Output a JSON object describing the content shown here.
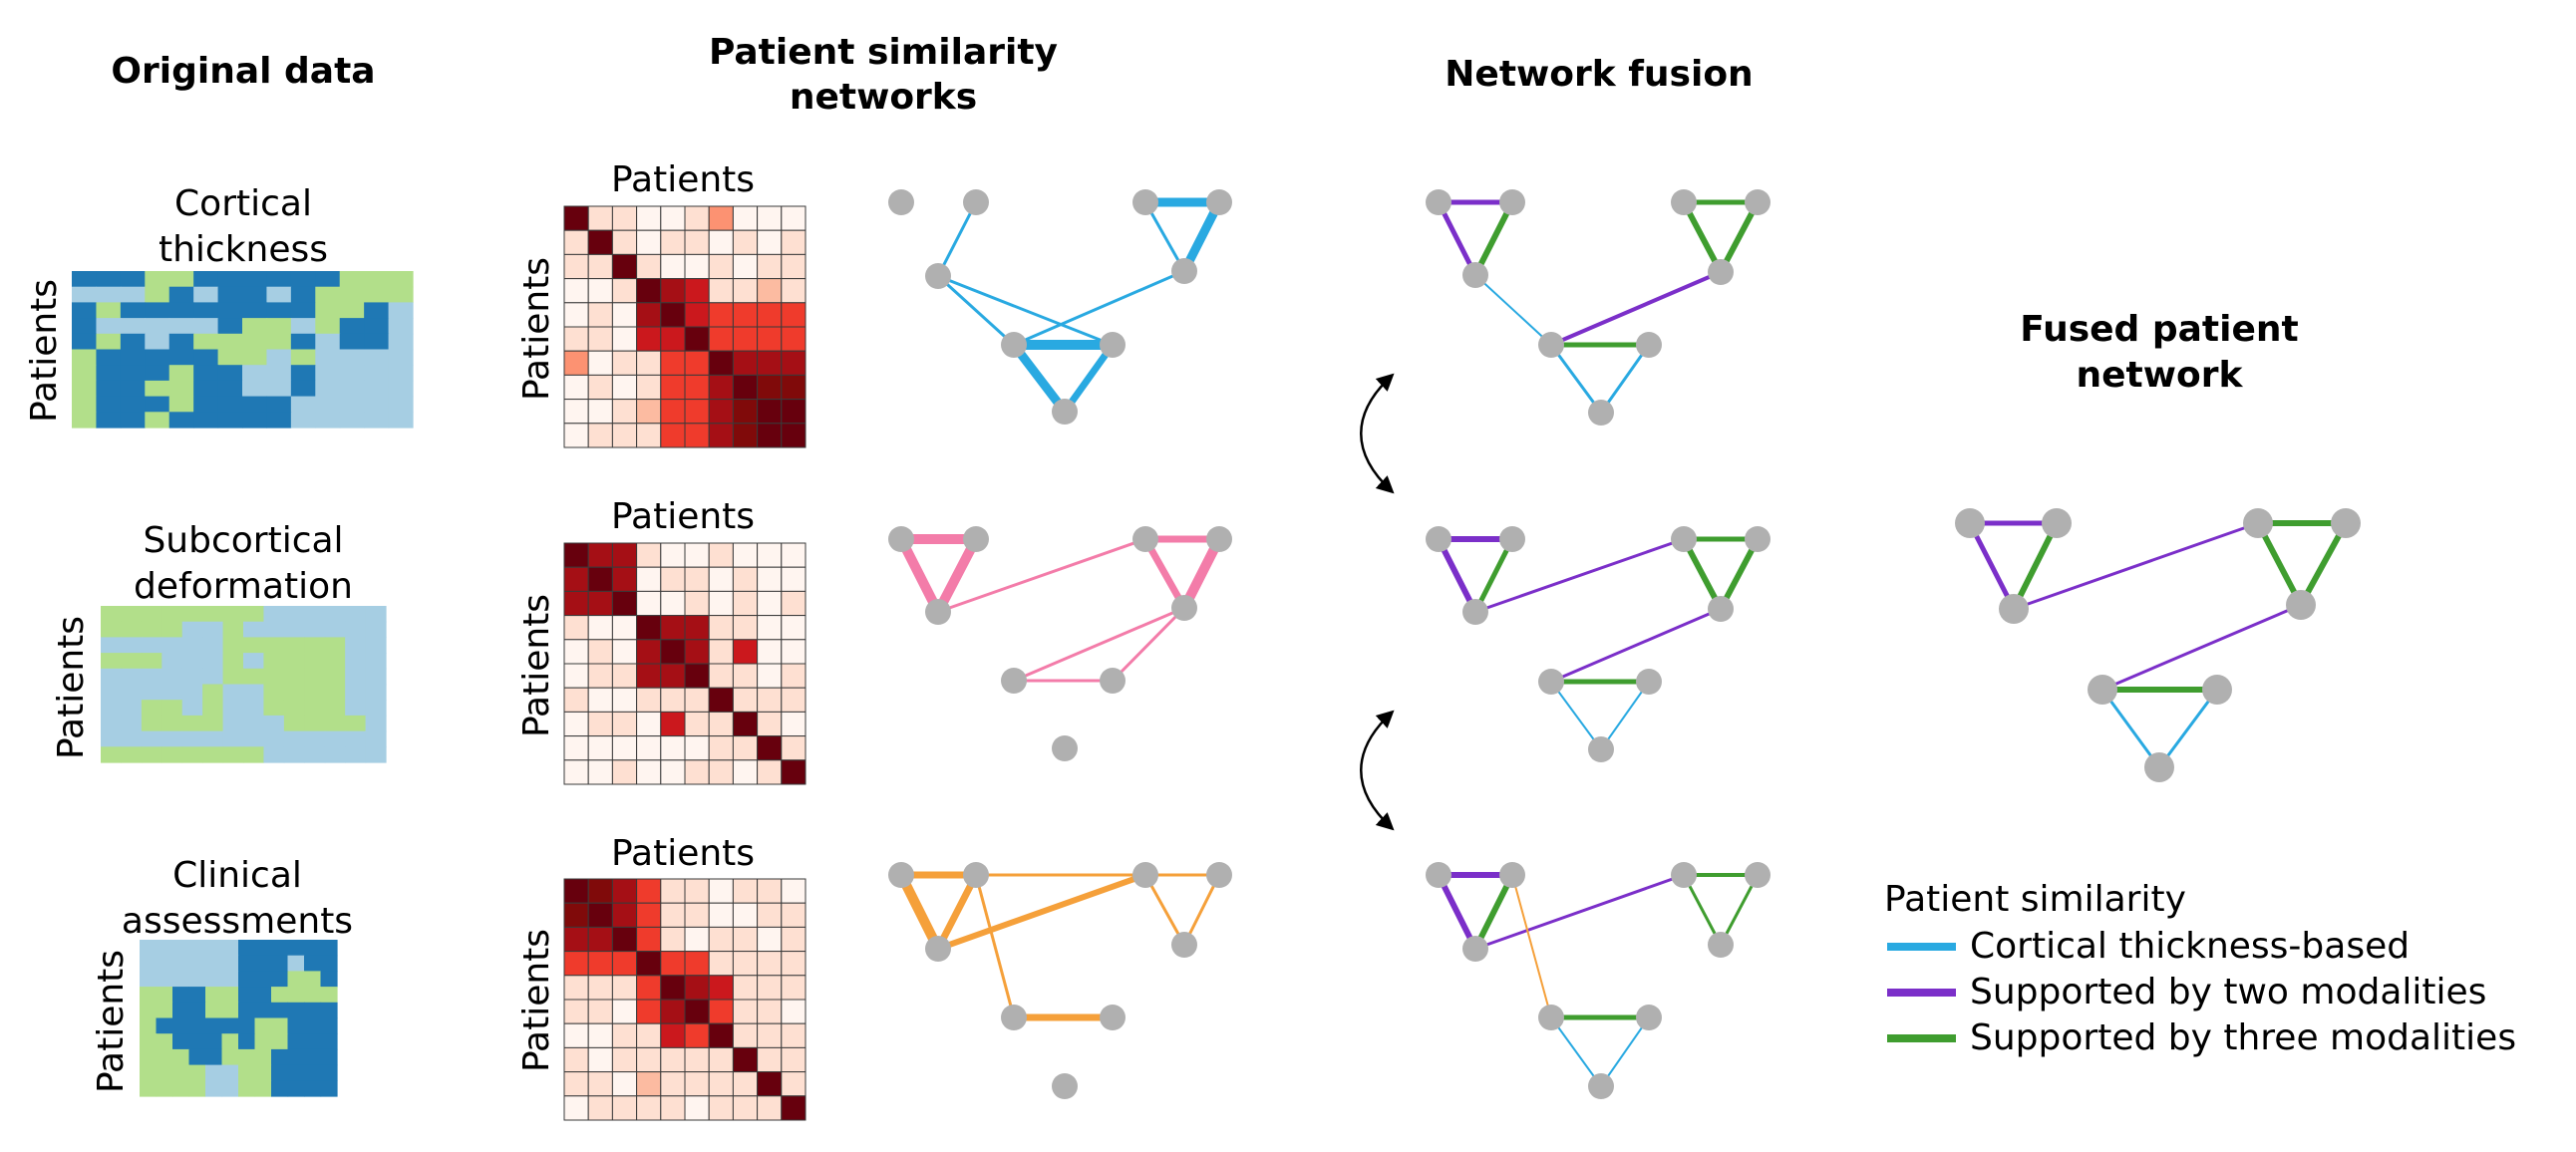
{
  "headers": {
    "original": "Original data",
    "psn_line1": "Patient similarity",
    "psn_line2": "networks",
    "fusion": "Network fusion",
    "fused_line1": "Fused patient",
    "fused_line2": "network"
  },
  "rows": [
    {
      "title": [
        "Cortical",
        "thickness"
      ],
      "ylabel": "Patients",
      "matrix_title": "Patients",
      "matrix_ylabel": "Patients"
    },
    {
      "title": [
        "Subcortical",
        "deformation"
      ],
      "ylabel": "Patients",
      "matrix_title": "Patients",
      "matrix_ylabel": "Patients"
    },
    {
      "title": [
        "Clinical",
        "assessments"
      ],
      "ylabel": "Patients",
      "matrix_title": "Patients",
      "matrix_ylabel": "Patients"
    }
  ],
  "legend": {
    "title": "Patient similarity",
    "items": [
      {
        "label": "Cortical thickness-based",
        "color": "#29a9e1"
      },
      {
        "label": "Supported by two modalities",
        "color": "#7b2fc9"
      },
      {
        "label": "Supported by three modalities",
        "color": "#3f9d2f"
      }
    ]
  },
  "colors": {
    "dark_blue": "#1f78b4",
    "light_blue": "#a6cee3",
    "light_green": "#b2df8a",
    "cortical": "#29a9e1",
    "subcortical": "#f37ca9",
    "clinical": "#f5a03a",
    "two": "#7b2fc9",
    "three": "#3f9d2f",
    "node": "#b0b0b0"
  },
  "heatmaps": [
    [
      "BBBGGBBBBBBGGG",
      "LLLGBLBBLBGGGG",
      "BGBBBBBBBBGGBL",
      "BLLLLLBGGLGBBL",
      "BGBLBGGGGBLBBL",
      "GBBBBBGGLGLLLL",
      "GBBBGBBLLBLLLL",
      "GBBGGBBLLBLLLL",
      "GBBBGBBBBLLLLL",
      "GBBGBBBBBLLLLL"
    ],
    [
      "GGGGGGGGLLLLLL",
      "GGGGLLGLLLLLLL",
      "LLLLLLGGGGGGLL",
      "GGGLLLGLGGGGLL",
      "LLLLLLGGGGGGLL",
      "LLLLLGLLGGGGLL",
      "LLGGLGLLGGGGLL",
      "LLGGGGLLLGGGGL",
      "LLLLLLLLLLLLLL",
      "GGGGGGGGLLLLLL"
    ],
    [
      "LLLLLLBBBBBB",
      "LLLLLLBBBLBB",
      "LLLLLLBBBGGB",
      "GGBBGGBBGGGG",
      "GGBBGGBBBBBB",
      "GBBBBBBGGBBB",
      "GGBBBGBGGBBB",
      "GGGBBGGGBBBB",
      "GGGGLLGGBBBB",
      "GGGGLLGGBBBB"
    ]
  ],
  "matrices": [
    [
      [
        9,
        1,
        1,
        0,
        0,
        1,
        3,
        0,
        0,
        0
      ],
      [
        1,
        9,
        1,
        0,
        1,
        1,
        0,
        1,
        0,
        1
      ],
      [
        1,
        1,
        9,
        1,
        0,
        0,
        1,
        0,
        1,
        1
      ],
      [
        0,
        0,
        1,
        9,
        7,
        6,
        1,
        1,
        2,
        1
      ],
      [
        0,
        1,
        0,
        7,
        9,
        6,
        5,
        5,
        5,
        5
      ],
      [
        1,
        1,
        0,
        6,
        6,
        9,
        5,
        5,
        5,
        5
      ],
      [
        3,
        0,
        1,
        1,
        5,
        5,
        9,
        7,
        7,
        7
      ],
      [
        0,
        1,
        0,
        1,
        5,
        5,
        7,
        9,
        8,
        8
      ],
      [
        0,
        0,
        1,
        2,
        5,
        5,
        7,
        8,
        9,
        9
      ],
      [
        0,
        1,
        1,
        1,
        5,
        5,
        7,
        8,
        9,
        9
      ]
    ],
    [
      [
        9,
        7,
        7,
        1,
        0,
        0,
        1,
        0,
        0,
        0
      ],
      [
        7,
        9,
        7,
        0,
        1,
        1,
        0,
        1,
        0,
        0
      ],
      [
        7,
        7,
        9,
        0,
        0,
        1,
        0,
        1,
        0,
        1
      ],
      [
        1,
        0,
        0,
        9,
        7,
        7,
        1,
        1,
        0,
        0
      ],
      [
        0,
        1,
        0,
        7,
        9,
        7,
        1,
        6,
        0,
        0
      ],
      [
        0,
        1,
        1,
        7,
        7,
        9,
        1,
        1,
        0,
        1
      ],
      [
        1,
        0,
        0,
        1,
        1,
        1,
        9,
        1,
        1,
        1
      ],
      [
        0,
        1,
        1,
        0,
        6,
        1,
        1,
        9,
        1,
        0
      ],
      [
        0,
        0,
        0,
        0,
        0,
        0,
        1,
        1,
        9,
        1
      ],
      [
        0,
        0,
        1,
        0,
        0,
        1,
        1,
        0,
        1,
        9
      ]
    ],
    [
      [
        9,
        8,
        7,
        5,
        1,
        1,
        0,
        1,
        1,
        0
      ],
      [
        8,
        9,
        7,
        5,
        1,
        1,
        0,
        0,
        1,
        1
      ],
      [
        7,
        7,
        9,
        5,
        1,
        0,
        1,
        1,
        0,
        1
      ],
      [
        5,
        5,
        5,
        9,
        5,
        5,
        1,
        1,
        1,
        1
      ],
      [
        1,
        1,
        1,
        5,
        9,
        7,
        6,
        1,
        1,
        1
      ],
      [
        1,
        1,
        0,
        5,
        7,
        9,
        5,
        1,
        1,
        0
      ],
      [
        0,
        0,
        1,
        1,
        6,
        5,
        9,
        1,
        1,
        1
      ],
      [
        1,
        0,
        1,
        1,
        1,
        1,
        1,
        9,
        1,
        1
      ],
      [
        1,
        1,
        0,
        2,
        1,
        1,
        1,
        1,
        9,
        1
      ],
      [
        0,
        1,
        1,
        1,
        1,
        0,
        1,
        1,
        1,
        9
      ]
    ]
  ]
}
